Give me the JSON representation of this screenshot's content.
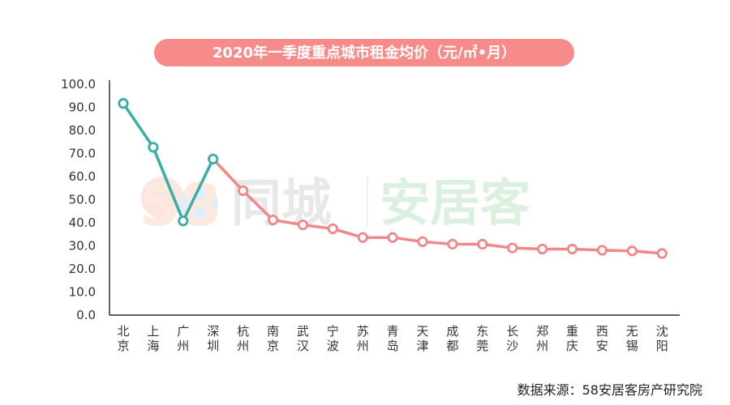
{
  "chart_data": {
    "type": "line",
    "title": "2020年一季度重点城市租金均价（元/㎡•月）",
    "categories": [
      "北京",
      "上海",
      "广州",
      "深圳",
      "杭州",
      "南京",
      "武汉",
      "宁波",
      "苏州",
      "青岛",
      "天津",
      "成都",
      "东莞",
      "长沙",
      "郑州",
      "重庆",
      "西安",
      "无锡",
      "沈阳"
    ],
    "values": [
      91.7,
      72.7,
      40.8,
      67.6,
      53.9,
      41.2,
      39.1,
      37.4,
      33.6,
      33.6,
      31.8,
      30.7,
      30.7,
      29.1,
      28.6,
      28.6,
      28.1,
      27.8,
      26.7
    ],
    "highlight_count": 4,
    "ylim": [
      0,
      100
    ],
    "yticks": [
      "0.0",
      "10.0",
      "20.0",
      "30.0",
      "40.0",
      "50.0",
      "60.0",
      "70.0",
      "80.0",
      "90.0",
      "100.0"
    ],
    "grid": false,
    "colors": {
      "highlight_line": "#3aada5",
      "main_line": "#f0888a",
      "title_bg": "#f68b8a",
      "axis": "#000000"
    }
  },
  "watermark": {
    "logo_number": "58",
    "brand_cn": "同城",
    "product_cn": "安居客"
  },
  "source": "数据来源：58安居客房产研究院"
}
